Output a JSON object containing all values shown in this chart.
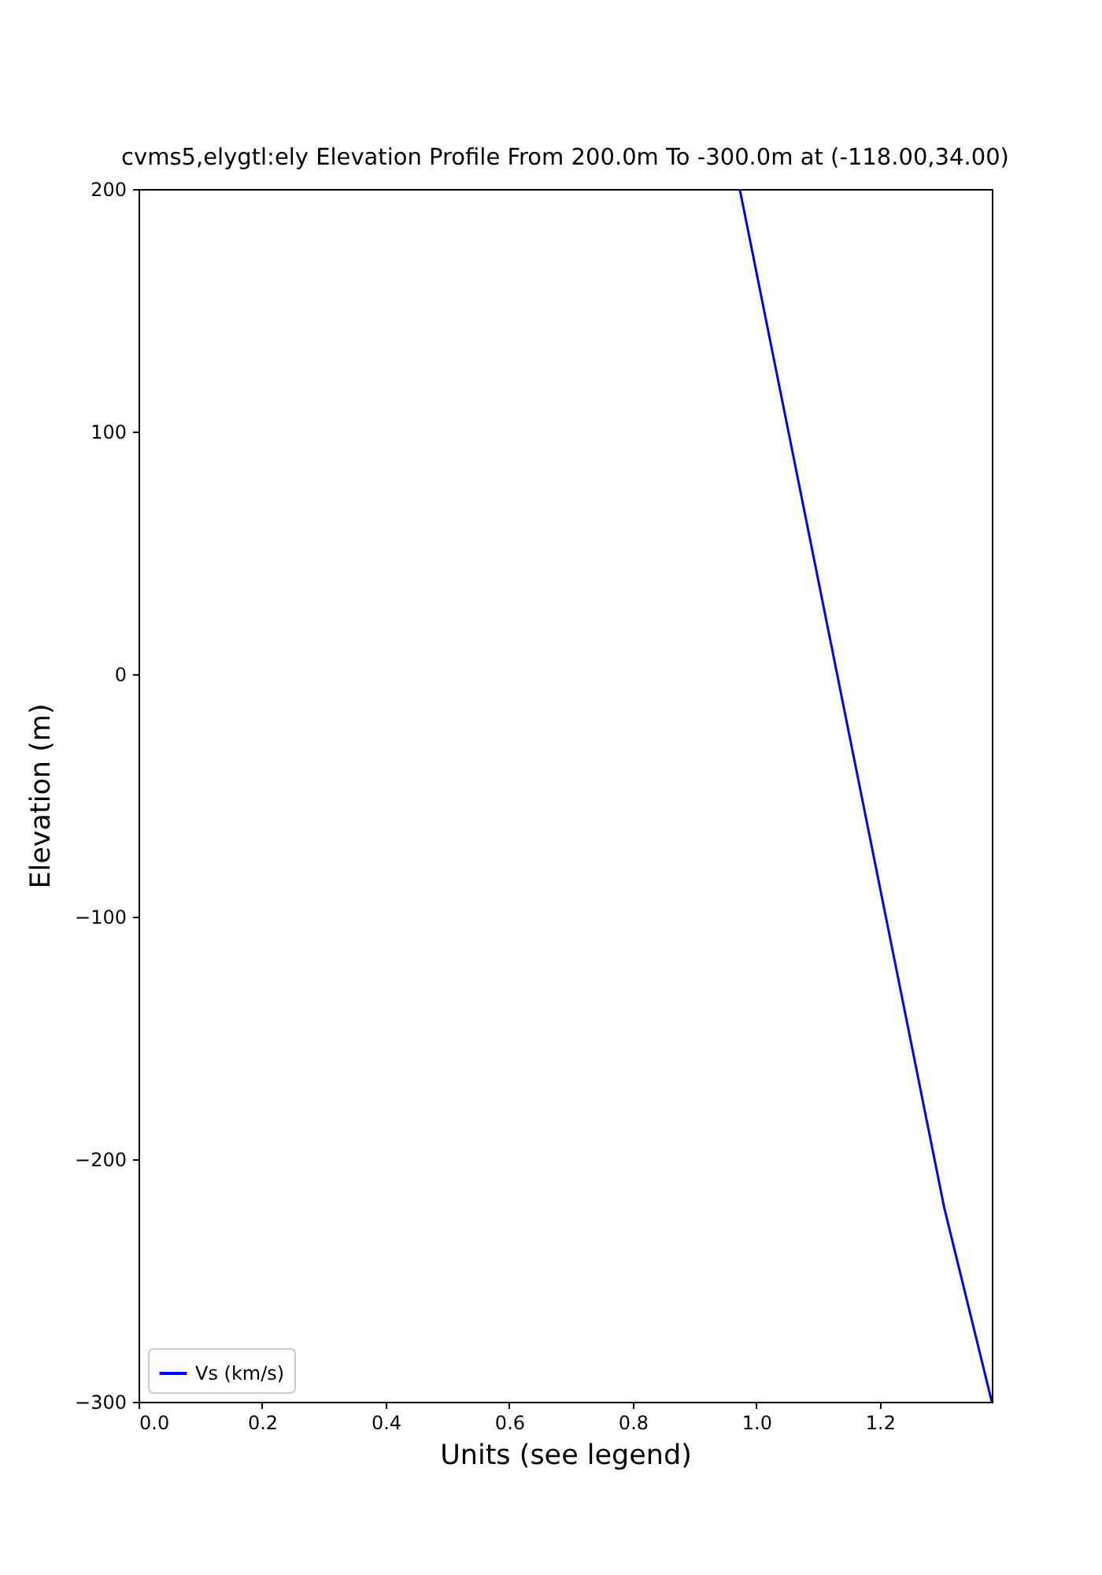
{
  "chart_data": {
    "type": "line",
    "title": "cvms5,elygtl:ely Elevation Profile From 200.0m To -300.0m at (-118.00,34.00)",
    "xlabel": "Units (see legend)",
    "ylabel": "Elevation (m)",
    "xlim": [
      0,
      1.381
    ],
    "xticks": [
      {
        "value": 0,
        "label": "0.0"
      },
      0.2,
      0.4,
      0.6,
      0.8,
      {
        "value": 1,
        "label": "1.0"
      },
      1.2
    ],
    "ylim": [
      -300,
      200
    ],
    "yticks": [
      -300,
      -200,
      -100,
      0,
      100,
      200
    ],
    "grid": false,
    "legend": "bottom left",
    "series": [
      {
        "name": "Vs (km/s)",
        "color": "#0000ff",
        "x": [
          0.973,
          1.304,
          1.381
        ],
        "values": [
          200,
          -220,
          -300
        ]
      }
    ]
  }
}
